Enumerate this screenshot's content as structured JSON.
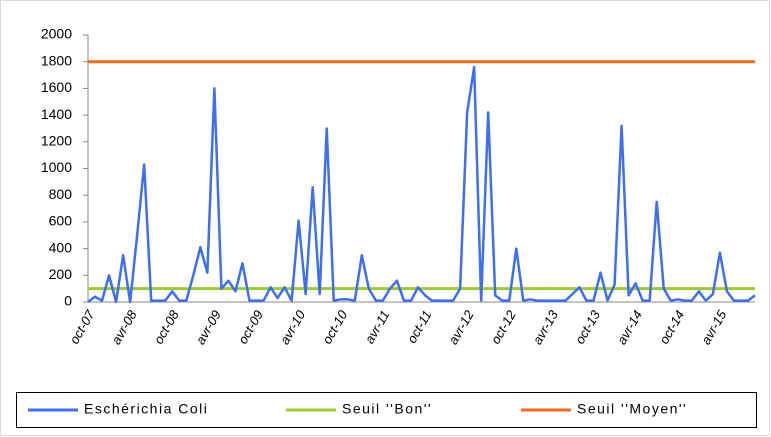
{
  "chart_data": {
    "type": "line",
    "categories": [
      "oct-07",
      null,
      null,
      null,
      null,
      null,
      "avr-08",
      null,
      null,
      null,
      null,
      null,
      "oct-08",
      null,
      null,
      null,
      null,
      null,
      "avr-09",
      null,
      null,
      null,
      null,
      null,
      "oct-09",
      null,
      null,
      null,
      null,
      null,
      "avr-10",
      null,
      null,
      null,
      null,
      null,
      "oct-10",
      null,
      null,
      null,
      null,
      null,
      "avr-11",
      null,
      null,
      null,
      null,
      null,
      "oct-11",
      null,
      null,
      null,
      null,
      null,
      "avr-12",
      null,
      null,
      null,
      null,
      null,
      "oct-12",
      null,
      null,
      null,
      null,
      null,
      "avr-13",
      null,
      null,
      null,
      null,
      null,
      "oct-13",
      null,
      null,
      null,
      null,
      null,
      "avr-14",
      null,
      null,
      null,
      null,
      null,
      "oct-14",
      null,
      null,
      null,
      null,
      null,
      "avr-15",
      null,
      null,
      null,
      null,
      null
    ],
    "series": [
      {
        "name": "Eschérichia Coli",
        "color": "#3f6ff0",
        "values": [
          0,
          40,
          10,
          200,
          0,
          350,
          0,
          500,
          1030,
          10,
          10,
          10,
          80,
          10,
          10,
          200,
          410,
          220,
          1600,
          100,
          160,
          80,
          290,
          10,
          10,
          10,
          110,
          30,
          110,
          10,
          610,
          60,
          860,
          60,
          1300,
          10,
          20,
          20,
          10,
          350,
          100,
          10,
          10,
          100,
          160,
          10,
          10,
          110,
          50,
          10,
          10,
          10,
          10,
          100,
          1420,
          1760,
          10,
          1420,
          50,
          10,
          10,
          400,
          10,
          20,
          10,
          10,
          10,
          10,
          10,
          60,
          110,
          10,
          10,
          220,
          10,
          130,
          1320,
          50,
          140,
          10,
          10,
          750,
          100,
          10,
          20,
          10,
          10,
          80,
          10,
          60,
          370,
          80,
          10,
          10,
          10,
          50
        ]
      },
      {
        "name": "Seuil ''Bon''",
        "color": "#9ccc2e",
        "values": [
          100,
          100,
          100,
          100,
          100,
          100,
          100,
          100,
          100,
          100,
          100,
          100,
          100,
          100,
          100,
          100,
          100,
          100,
          100,
          100,
          100,
          100,
          100,
          100,
          100,
          100,
          100,
          100,
          100,
          100,
          100,
          100,
          100,
          100,
          100,
          100,
          100,
          100,
          100,
          100,
          100,
          100,
          100,
          100,
          100,
          100,
          100,
          100,
          100,
          100,
          100,
          100,
          100,
          100,
          100,
          100,
          100,
          100,
          100,
          100,
          100,
          100,
          100,
          100,
          100,
          100,
          100,
          100,
          100,
          100,
          100,
          100,
          100,
          100,
          100,
          100,
          100,
          100,
          100,
          100,
          100,
          100,
          100,
          100,
          100,
          100,
          100,
          100,
          100,
          100,
          100,
          100,
          100,
          100,
          100,
          100
        ]
      },
      {
        "name": "Seuil ''Moyen''",
        "color": "#f26b21",
        "values": [
          1800,
          1800,
          1800,
          1800,
          1800,
          1800,
          1800,
          1800,
          1800,
          1800,
          1800,
          1800,
          1800,
          1800,
          1800,
          1800,
          1800,
          1800,
          1800,
          1800,
          1800,
          1800,
          1800,
          1800,
          1800,
          1800,
          1800,
          1800,
          1800,
          1800,
          1800,
          1800,
          1800,
          1800,
          1800,
          1800,
          1800,
          1800,
          1800,
          1800,
          1800,
          1800,
          1800,
          1800,
          1800,
          1800,
          1800,
          1800,
          1800,
          1800,
          1800,
          1800,
          1800,
          1800,
          1800,
          1800,
          1800,
          1800,
          1800,
          1800,
          1800,
          1800,
          1800,
          1800,
          1800,
          1800,
          1800,
          1800,
          1800,
          1800,
          1800,
          1800,
          1800,
          1800,
          1800,
          1800,
          1800,
          1800,
          1800,
          1800,
          1800,
          1800,
          1800,
          1800,
          1800,
          1800,
          1800,
          1800,
          1800,
          1800,
          1800,
          1800,
          1800,
          1800,
          1800,
          1800
        ]
      }
    ],
    "ylim": [
      0,
      2000
    ],
    "yticks": [
      0,
      200,
      400,
      600,
      800,
      1000,
      1200,
      1400,
      1600,
      1800,
      2000
    ],
    "grid": false,
    "legend": "bottom"
  }
}
